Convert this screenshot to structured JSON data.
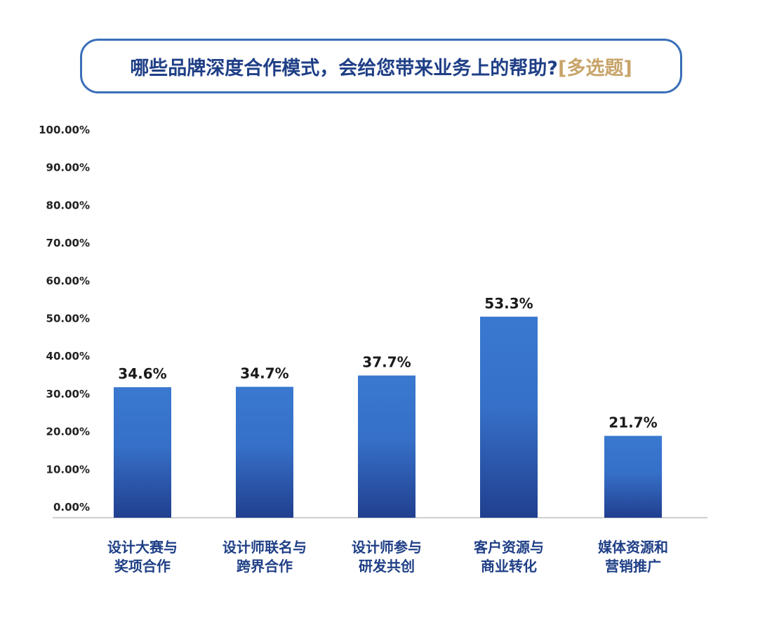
{
  "title": {
    "main": "哪些品牌深度合作模式，会给您带来业务上的帮助?",
    "tag": "[多选题]"
  },
  "colors": {
    "bar_top": "#3a78d0",
    "bar_bottom": "#213f8f",
    "title_text": "#1f3f86",
    "title_tag": "#c8a46a",
    "border": "#3a6fb8",
    "axis": "#bfbfbf"
  },
  "chart_data": {
    "type": "bar",
    "categories": [
      [
        "设计大赛与",
        "奖项合作"
      ],
      [
        "设计师联名与",
        "跨界合作"
      ],
      [
        "设计师参与",
        "研发共创"
      ],
      [
        "客户资源与",
        "商业转化"
      ],
      [
        "媒体资源和",
        "营销推广"
      ]
    ],
    "values": [
      34.6,
      34.7,
      37.7,
      53.3,
      21.7
    ],
    "value_labels": [
      "34.6%",
      "34.7%",
      "37.7%",
      "53.3%",
      "21.7%"
    ],
    "y_ticks": [
      "0.00%",
      "10.00%",
      "20.00%",
      "30.00%",
      "40.00%",
      "50.00%",
      "60.00%",
      "70.00%",
      "80.00%",
      "90.00%",
      "100.00%"
    ],
    "ylim": [
      0,
      100
    ],
    "grid": false
  }
}
